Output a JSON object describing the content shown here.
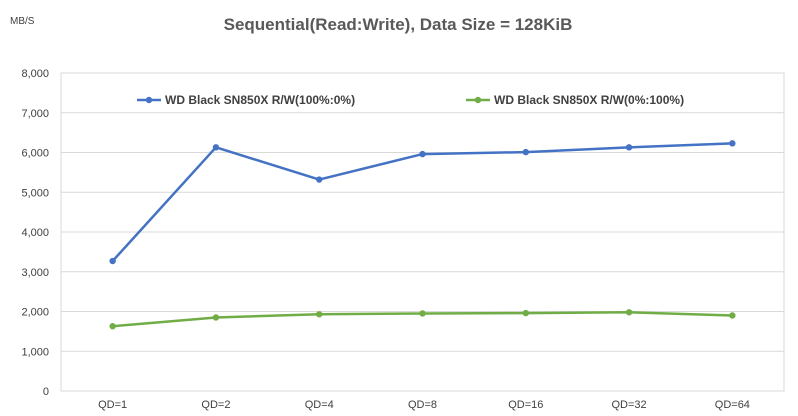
{
  "chart_data": {
    "type": "line",
    "title": "Sequential(Read:Write),  Data Size = 128KiB",
    "ylabel": "MB/S",
    "xlabel": "",
    "categories": [
      "QD=1",
      "QD=2",
      "QD=4",
      "QD=8",
      "QD=16",
      "QD=32",
      "QD=64"
    ],
    "ylim": [
      0,
      8000
    ],
    "yticks": [
      0,
      1000,
      2000,
      3000,
      4000,
      5000,
      6000,
      7000,
      8000
    ],
    "ytick_labels": [
      "0",
      "1,000",
      "2,000",
      "3,000",
      "4,000",
      "5,000",
      "6,000",
      "7,000",
      "8,000"
    ],
    "grid": true,
    "legend_position": "top",
    "series": [
      {
        "name": "WD Black SN850X R/W(100%:0%)",
        "color": "#4472c4",
        "values": [
          3270,
          6130,
          5320,
          5960,
          6010,
          6130,
          6230
        ]
      },
      {
        "name": "WD Black SN850X R/W(0%:100%)",
        "color": "#70ad47",
        "values": [
          1630,
          1850,
          1930,
          1950,
          1960,
          1980,
          1900
        ]
      }
    ]
  }
}
